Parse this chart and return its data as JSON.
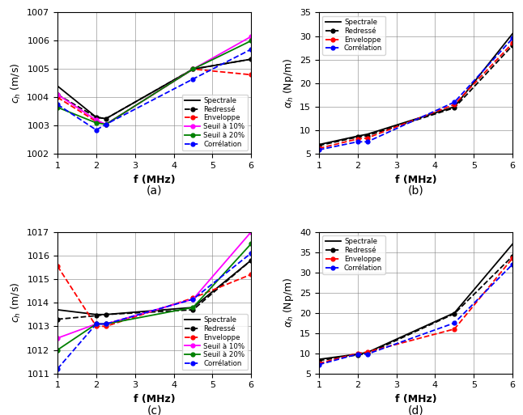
{
  "freq": [
    1,
    2,
    2.25,
    4.5,
    6
  ],
  "subplot_a": {
    "spectrale": [
      1004.4,
      1003.3,
      1003.25,
      1005.0,
      1005.35
    ],
    "redresse": [
      1004.1,
      1003.3,
      1003.25,
      1005.0,
      1005.35
    ],
    "enveloppe": [
      1004.0,
      1003.15,
      1003.05,
      1005.0,
      1004.8
    ],
    "seuil10": [
      1004.1,
      1003.2,
      1003.05,
      1005.0,
      1006.15
    ],
    "seuil20": [
      1003.65,
      1003.1,
      1003.05,
      1005.0,
      1006.0
    ],
    "correlation": [
      1003.75,
      1002.85,
      1003.05,
      1004.65,
      1005.7
    ]
  },
  "ylim_a": [
    1002,
    1007
  ],
  "yticks_a": [
    1002,
    1003,
    1004,
    1005,
    1006,
    1007
  ],
  "subplot_b": {
    "spectrale": [
      7.0,
      8.8,
      9.2,
      15.0,
      30.5
    ],
    "redresse": [
      6.8,
      8.6,
      8.9,
      14.8,
      28.0
    ],
    "enveloppe": [
      6.2,
      8.2,
      8.4,
      15.5,
      28.5
    ],
    "correlation": [
      5.9,
      7.6,
      7.6,
      16.0,
      29.5
    ]
  },
  "ylim_b": [
    5,
    35
  ],
  "yticks_b": [
    5,
    10,
    15,
    20,
    25,
    30,
    35
  ],
  "subplot_c": {
    "spectrale": [
      1013.7,
      1013.5,
      1013.5,
      1013.8,
      1015.8
    ],
    "redresse": [
      1013.3,
      1013.45,
      1013.5,
      1013.7,
      1015.8
    ],
    "enveloppe": [
      1015.55,
      1013.0,
      1013.0,
      1014.2,
      1015.2
    ],
    "seuil10": [
      1012.5,
      1013.1,
      1013.1,
      1014.15,
      1017.0
    ],
    "seuil20": [
      1012.0,
      1013.1,
      1013.1,
      1013.8,
      1016.5
    ],
    "correlation": [
      1011.2,
      1013.1,
      1013.1,
      1014.15,
      1016.1
    ]
  },
  "ylim_c": [
    1011,
    1017
  ],
  "yticks_c": [
    1011,
    1012,
    1013,
    1014,
    1015,
    1016,
    1017
  ],
  "subplot_d": {
    "spectrale": [
      8.5,
      9.8,
      10.2,
      20.0,
      37.0
    ],
    "redresse": [
      8.2,
      9.6,
      9.9,
      19.8,
      34.0
    ],
    "enveloppe": [
      7.5,
      10.0,
      10.3,
      16.0,
      33.5
    ],
    "correlation": [
      7.2,
      9.8,
      9.8,
      17.5,
      32.0
    ]
  },
  "ylim_d": [
    5,
    40
  ],
  "yticks_d": [
    5,
    10,
    15,
    20,
    25,
    30,
    35,
    40
  ],
  "colors": {
    "spectrale": "#000000",
    "redresse": "#000000",
    "enveloppe": "#ff0000",
    "seuil10": "#ff00ff",
    "seuil20": "#008000",
    "correlation": "#0000ff"
  },
  "legend_bd": [
    "Spectrale",
    "Redressé",
    "Enveloppe",
    "Corrélation"
  ],
  "legend_ac": [
    "Spectrale",
    "Redressé",
    "Enveloppe",
    "Seuil à 10%",
    "Seuil à 20%",
    "Corrélation"
  ],
  "xlabel": "f (MHz)",
  "ylabel_c": "$c_h$ (m/s)",
  "ylabel_a": "$c_h$ (m/s)",
  "ylabel_b": "$\\alpha_h$ (Np/m)",
  "ylabel_d": "$\\alpha_h$ (Np/m)",
  "label_a": "(a)",
  "label_b": "(b)",
  "label_c": "(c)",
  "label_d": "(d)"
}
